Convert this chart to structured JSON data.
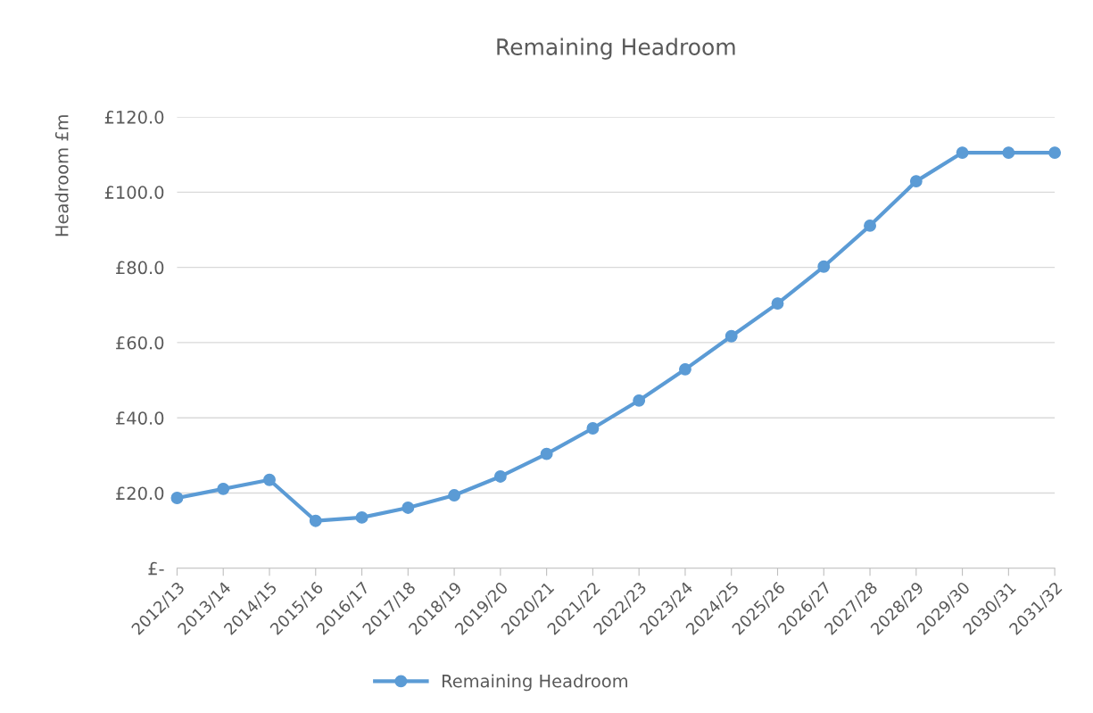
{
  "chart_data": {
    "type": "line",
    "title": "Remaining Headroom",
    "ylabel": "Headroom £m",
    "categories": [
      "2012/13",
      "2013/14",
      "2014/15",
      "2015/16",
      "2016/17",
      "2017/18",
      "2018/19",
      "2019/20",
      "2020/21",
      "2021/22",
      "2022/23",
      "2023/24",
      "2024/25",
      "2025/26",
      "2026/27",
      "2027/28",
      "2028/29",
      "2029/30",
      "2030/31",
      "2031/32"
    ],
    "series": [
      {
        "name": "Remaining Headroom",
        "color": "#5b9bd5",
        "values": [
          18.7,
          21.1,
          23.5,
          12.6,
          13.5,
          16.1,
          19.4,
          24.4,
          30.4,
          37.2,
          44.6,
          52.9,
          61.7,
          70.4,
          80.2,
          91.1,
          102.9,
          110.5,
          110.5,
          110.5
        ]
      }
    ],
    "ylim": [
      0,
      120
    ],
    "yticks": [
      {
        "value": 0,
        "label": "£-"
      },
      {
        "value": 20,
        "label": "£20.0"
      },
      {
        "value": 40,
        "label": "£40.0"
      },
      {
        "value": 60,
        "label": "£60.0"
      },
      {
        "value": 80,
        "label": "£80.0"
      },
      {
        "value": 100,
        "label": "£100.0"
      },
      {
        "value": 120,
        "label": "£120.0"
      }
    ],
    "grid": "y",
    "legend": "bottom",
    "marker": "circle",
    "line_style": "solid"
  }
}
